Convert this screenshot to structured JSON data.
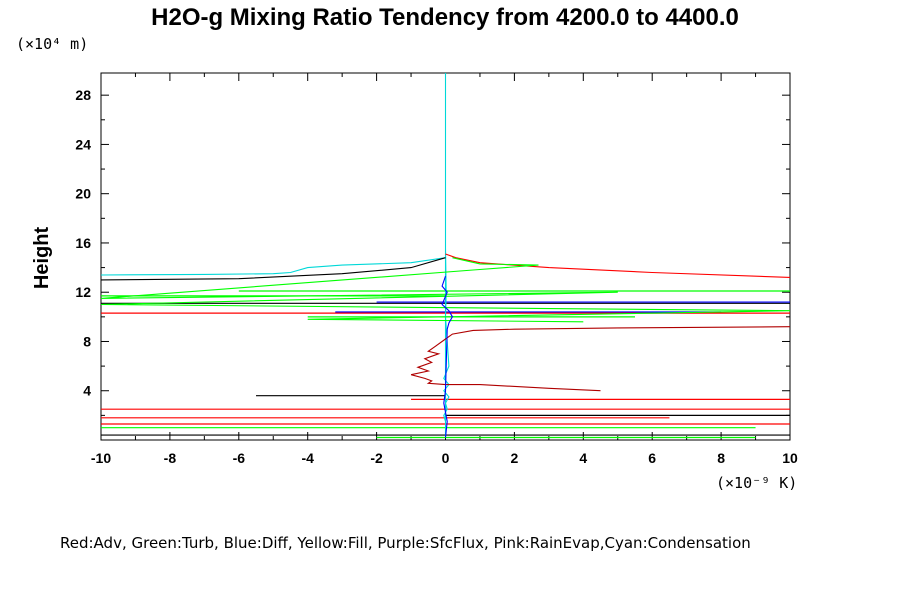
{
  "chart_data": {
    "type": "line",
    "title": "H2O-g Mixing Ratio Tendency from 4200.0 to 4400.0",
    "ylabel": "Height",
    "y_multiplier": "(×10⁴ m)",
    "x_multiplier": "(×10⁻⁹ K)",
    "legend_text": "Red:Adv, Green:Turb, Blue:Diff, Yellow:Fill, Purple:SfcFlux, Pink:RainEvap,Cyan:Condensation",
    "xlim": [
      -10,
      10
    ],
    "ylim": [
      0,
      29.8
    ],
    "x_ticks": [
      -10,
      -8,
      -6,
      -4,
      -2,
      0,
      2,
      4,
      6,
      8,
      10
    ],
    "y_ticks": [
      4,
      8,
      12,
      16,
      20,
      24,
      28
    ],
    "grid": false,
    "series": [
      {
        "name": "Condensation",
        "color": "#00d8d8",
        "x": [
          -10,
          -7,
          -5,
          -4.5,
          -4,
          -3,
          -1,
          0,
          0,
          0.02,
          0,
          0.05,
          0.1,
          -0.05,
          0.1,
          -0.05,
          0.1,
          0,
          0.05,
          -0.05,
          0,
          0,
          0,
          0,
          0
        ],
        "y": [
          13.4,
          13.45,
          13.5,
          13.6,
          14.0,
          14.2,
          14.4,
          14.8,
          15.6,
          12.0,
          10.0,
          8.0,
          6.0,
          5.0,
          4.5,
          4.0,
          3.5,
          3.0,
          2.5,
          2.0,
          1.5,
          1.0,
          0.5,
          0.3,
          29.8
        ]
      },
      {
        "name": "Adv",
        "color": "#ff0000",
        "x": [
          0,
          0.3,
          1,
          3,
          6,
          10
        ],
        "y": [
          15.1,
          14.8,
          14.4,
          14.0,
          13.6,
          13.2
        ]
      },
      {
        "name": "Adv",
        "color": "#b00000",
        "x": [
          10,
          5,
          2,
          0.8,
          0.2,
          0,
          -0.3,
          -0.5,
          -0.2,
          -0.6,
          -0.4,
          -0.8,
          -0.5,
          -1.0,
          -0.6,
          -0.4,
          -0.5,
          0,
          1,
          3,
          4.5
        ],
        "y": [
          9.2,
          9.1,
          9.0,
          8.9,
          8.6,
          8.2,
          7.6,
          7.2,
          7.0,
          6.6,
          6.3,
          5.9,
          5.6,
          5.3,
          5.0,
          4.8,
          4.6,
          4.5,
          4.5,
          4.2,
          4.0
        ]
      },
      {
        "name": "Turb",
        "color": "#00ff00",
        "x": [
          0.2,
          1,
          2.7,
          0.8,
          -10,
          5,
          -10,
          10,
          -4,
          4
        ],
        "y": [
          14.8,
          14.3,
          14.2,
          13.8,
          11.5,
          12.0,
          11.0,
          10.5,
          9.8,
          9.6
        ]
      },
      {
        "name": "Diff",
        "color": "#0000ff",
        "x": [
          0,
          -0.1,
          0.05,
          -0.1,
          0.1,
          0.2,
          0.1,
          0.05,
          0,
          -0.05,
          0.05,
          0
        ],
        "y": [
          13.3,
          12.5,
          12.0,
          11.0,
          10.5,
          10.0,
          9.5,
          9.0,
          4.0,
          3.0,
          1.5,
          0.2
        ]
      },
      {
        "name": "Adv",
        "color": "#000000",
        "x": [
          -10,
          -6,
          -3,
          -1,
          0
        ],
        "y": [
          13.0,
          13.1,
          13.5,
          14.0,
          14.8
        ]
      }
    ],
    "horizontal_streaks": [
      {
        "color": "#000000",
        "y": 11.1,
        "x0": -10,
        "x1": 10
      },
      {
        "color": "#0000ff",
        "y": 11.2,
        "x0": -2,
        "x1": 10
      },
      {
        "color": "#ff0000",
        "y": 10.3,
        "x0": -10,
        "x1": 10
      },
      {
        "color": "#00ff00",
        "y": 11.7,
        "x0": -10,
        "x1": 0
      },
      {
        "color": "#00ff00",
        "y": 12.1,
        "x0": -6,
        "x1": 10
      },
      {
        "color": "#0000ff",
        "y": 10.4,
        "x0": -3.2,
        "x1": 8
      },
      {
        "color": "#00ff00",
        "y": 10.0,
        "x0": -4,
        "x1": 5.5
      },
      {
        "color": "#000000",
        "y": 3.6,
        "x0": -5.5,
        "x1": 0
      },
      {
        "color": "#ff0000",
        "y": 2.5,
        "x0": -10,
        "x1": 10
      },
      {
        "color": "#ff0000",
        "y": 3.3,
        "x0": -1,
        "x1": 10
      },
      {
        "color": "#ff0000",
        "y": 1.8,
        "x0": -10,
        "x1": 6.5
      },
      {
        "color": "#ff0000",
        "y": 1.3,
        "x0": -10,
        "x1": 10
      },
      {
        "color": "#00ff00",
        "y": 1.0,
        "x0": -10,
        "x1": 9
      },
      {
        "color": "#000000",
        "y": 0.4,
        "x0": -10,
        "x1": 10
      },
      {
        "color": "#00ff00",
        "y": 0.2,
        "x0": -2,
        "x1": 9
      },
      {
        "color": "#000000",
        "y": 2.0,
        "x0": 0,
        "x1": 10
      }
    ]
  }
}
